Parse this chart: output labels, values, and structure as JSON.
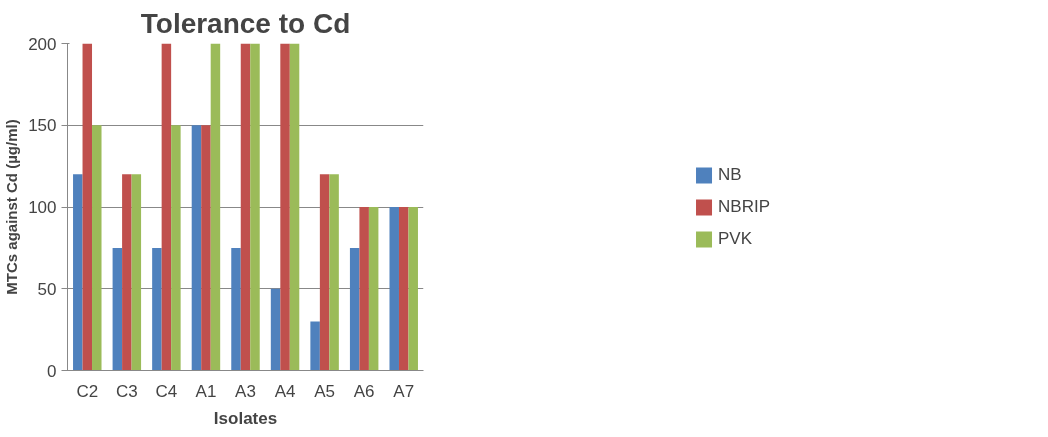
{
  "chart_data": {
    "type": "bar",
    "title": "Tolerance to Cd",
    "xlabel": "Isolates",
    "ylabel": "MTCs against Cd (µg/ml)",
    "categories": [
      "C2",
      "C3",
      "C4",
      "A1",
      "A3",
      "A4",
      "A5",
      "A6",
      "A7"
    ],
    "series": [
      {
        "name": "NB",
        "color": "#4f81bd",
        "values": [
          120,
          75,
          75,
          150,
          75,
          50,
          30,
          75,
          100
        ]
      },
      {
        "name": "NBRIP",
        "color": "#c0504d",
        "values": [
          200,
          120,
          200,
          150,
          200,
          200,
          120,
          100,
          100
        ]
      },
      {
        "name": "PVK",
        "color": "#9bbb59",
        "values": [
          150,
          120,
          150,
          200,
          200,
          200,
          120,
          100,
          100
        ]
      }
    ],
    "ylim": [
      0,
      200
    ],
    "yticks": [
      0,
      50,
      100,
      150,
      200
    ],
    "grid": "y",
    "legend": "right"
  }
}
